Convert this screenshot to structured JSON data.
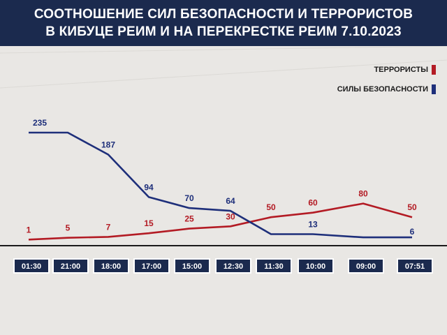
{
  "header": {
    "title_line1": "СООТНОШЕНИЕ СИЛ БЕЗОПАСНОСТИ И ТЕРРОРИСТОВ",
    "title_line2": "В КИБУЦЕ РЕИМ И НА ПЕРЕКРЕСТКЕ РЕИМ 7.10.2023"
  },
  "colors": {
    "header_bg": "#1b2a4e",
    "terrorists": "#b31b24",
    "security": "#1e2f7a",
    "axis": "#1a1a1a",
    "tick_box": "#1b2a4e"
  },
  "chart_data": {
    "type": "line",
    "title": "СООТНОШЕНИЕ СИЛ БЕЗОПАСНОСТИ И ТЕРРОРИСТОВ В КИБУЦЕ РЕИМ И НА ПЕРЕКРЕСТКЕ РЕИМ 7.10.2023",
    "categories": [
      "01:30",
      "21:00",
      "18:00",
      "17:00",
      "15:00",
      "12:30",
      "11:30",
      "10:00",
      "09:00",
      "07:51"
    ],
    "legend_position": "top-right",
    "grid": false,
    "series": [
      {
        "name": "ТЕРРОРИСТЫ",
        "color": "#b31b24",
        "values": [
          1,
          5,
          7,
          15,
          25,
          30,
          50,
          60,
          80,
          50
        ]
      },
      {
        "name": "СИЛЫ БЕЗОПАСНОСТИ",
        "color": "#1e2f7a",
        "values": [
          235,
          235,
          187,
          94,
          70,
          64,
          13,
          13,
          6,
          6
        ],
        "labels": [
          "235",
          "",
          "187",
          "94",
          "70",
          "64",
          "",
          "13",
          "",
          "6"
        ]
      }
    ],
    "terrorist_labels": [
      "1",
      "5",
      "7",
      "15",
      "25",
      "30",
      "50",
      "60",
      "80",
      "50"
    ]
  }
}
